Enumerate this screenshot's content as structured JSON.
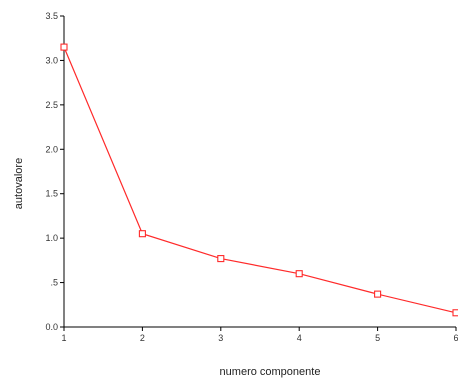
{
  "colors": {
    "series": "#ff2a2a",
    "axis": "#000000",
    "background": "#ffffff"
  },
  "chart_data": {
    "type": "line",
    "title": "",
    "xlabel": "numero componente",
    "ylabel": "autovalore",
    "x": [
      1,
      2,
      3,
      4,
      5,
      6
    ],
    "xlim": [
      1,
      6
    ],
    "ylim": [
      0,
      3.5
    ],
    "x_ticks": [
      "1",
      "2",
      "3",
      "4",
      "5",
      "6"
    ],
    "y_ticks": [
      {
        "value": 0,
        "label": "0.0"
      },
      {
        "value": 0.5,
        "label": ".5"
      },
      {
        "value": 1.0,
        "label": "1.0"
      },
      {
        "value": 1.5,
        "label": "1.5"
      },
      {
        "value": 2.0,
        "label": "2.0"
      },
      {
        "value": 2.5,
        "label": "2.5"
      },
      {
        "value": 3.0,
        "label": "3.0"
      },
      {
        "value": 3.5,
        "label": "3.5"
      }
    ],
    "grid": false,
    "series": [
      {
        "values": [
          3.15,
          1.05,
          0.77,
          0.6,
          0.37,
          0.16
        ],
        "marker": "square"
      }
    ]
  }
}
